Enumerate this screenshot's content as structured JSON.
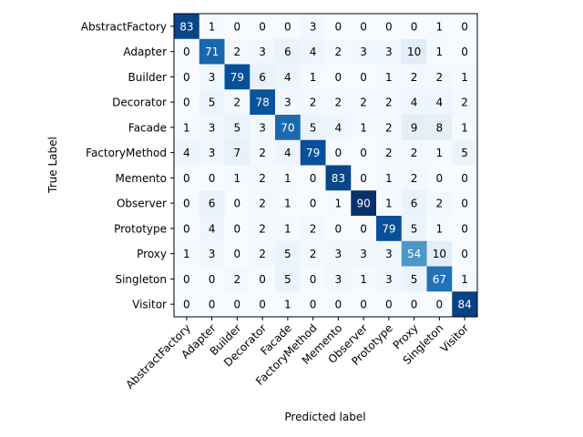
{
  "chart_data": {
    "type": "heatmap",
    "title": "",
    "xlabel": "Predicted label",
    "ylabel": "True Label",
    "x_categories": [
      "AbstractFactory",
      "Adapter",
      "Builder",
      "Decorator",
      "Facade",
      "FactoryMethod",
      "Memento",
      "Observer",
      "Prototype",
      "Proxy",
      "Singleton",
      "Visitor"
    ],
    "y_categories": [
      "AbstractFactory",
      "Adapter",
      "Builder",
      "Decorator",
      "Facade",
      "FactoryMethod",
      "Memento",
      "Observer",
      "Prototype",
      "Proxy",
      "Singleton",
      "Visitor"
    ],
    "values": [
      [
        83,
        1,
        0,
        0,
        0,
        3,
        0,
        0,
        0,
        0,
        1,
        0
      ],
      [
        0,
        71,
        2,
        3,
        6,
        4,
        2,
        3,
        3,
        10,
        1,
        0
      ],
      [
        0,
        3,
        79,
        6,
        4,
        1,
        0,
        0,
        1,
        2,
        2,
        1
      ],
      [
        0,
        5,
        2,
        78,
        3,
        2,
        2,
        2,
        2,
        4,
        4,
        2
      ],
      [
        1,
        3,
        5,
        3,
        70,
        5,
        4,
        1,
        2,
        9,
        8,
        1
      ],
      [
        4,
        3,
        7,
        2,
        4,
        79,
        0,
        0,
        2,
        2,
        1,
        5
      ],
      [
        0,
        0,
        1,
        2,
        1,
        0,
        83,
        0,
        1,
        2,
        0,
        0
      ],
      [
        0,
        6,
        0,
        2,
        1,
        0,
        1,
        90,
        1,
        6,
        2,
        0
      ],
      [
        0,
        4,
        0,
        2,
        1,
        2,
        0,
        0,
        79,
        5,
        1,
        0
      ],
      [
        1,
        3,
        0,
        2,
        5,
        2,
        3,
        3,
        3,
        54,
        10,
        0
      ],
      [
        0,
        0,
        2,
        0,
        5,
        0,
        3,
        1,
        3,
        5,
        67,
        1
      ],
      [
        0,
        0,
        0,
        0,
        1,
        0,
        0,
        0,
        0,
        0,
        0,
        84
      ]
    ],
    "colormap": "Blues",
    "value_range": [
      0,
      90
    ],
    "grid": false,
    "legend": "none"
  }
}
